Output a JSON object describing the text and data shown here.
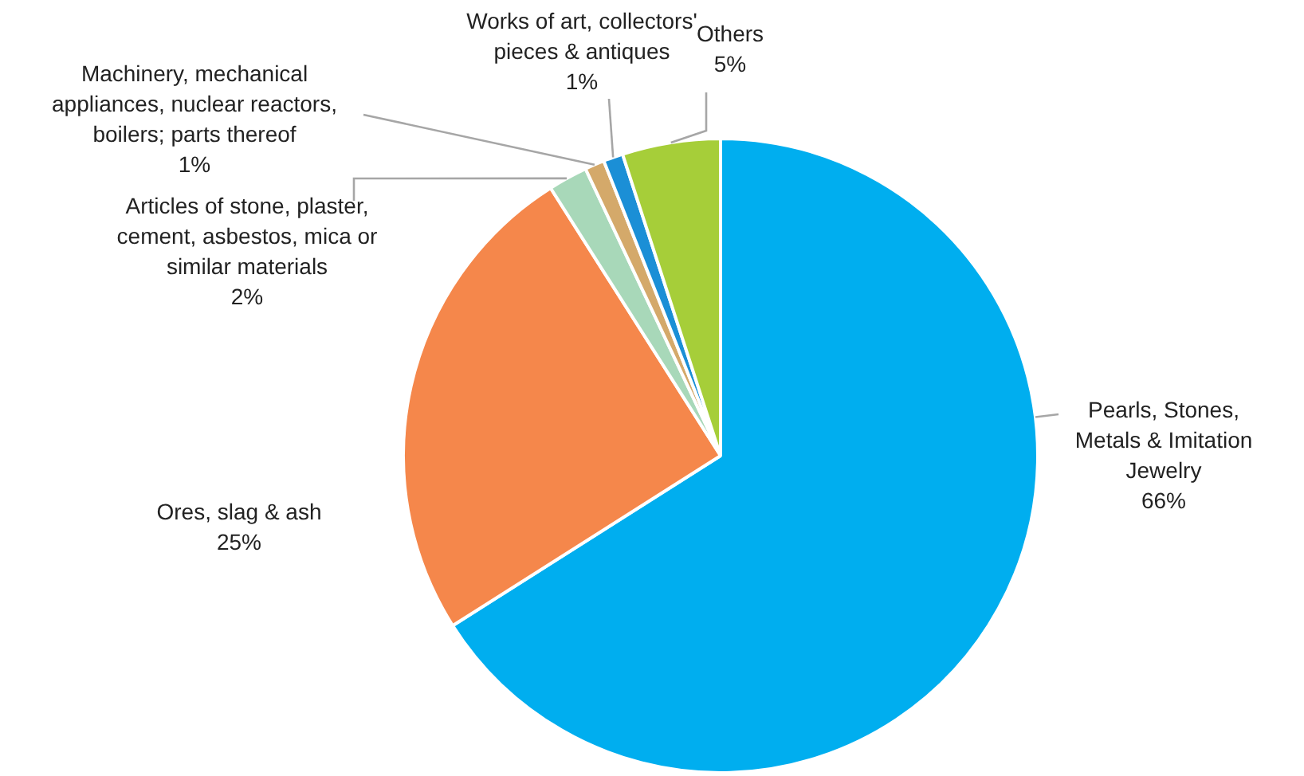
{
  "chart_data": {
    "type": "pie",
    "categories": [
      "Pearls, Stones, Metals & Imitation Jewelry",
      "Ores, slag & ash",
      "Articles of stone, plaster, cement, asbestos, mica or similar materials",
      "Machinery, mechanical appliances, nuclear reactors, boilers; parts thereof",
      "Works of art, collectors' pieces & antiques",
      "Others"
    ],
    "values": [
      66,
      25,
      2,
      1,
      1,
      5
    ],
    "colors": [
      "#00aeef",
      "#f5874b",
      "#a8d8b9",
      "#d4a96a",
      "#1b8fd6",
      "#a6ce39"
    ],
    "value_labels": [
      "66%",
      "25%",
      "2%",
      "1%",
      "1%",
      "5%"
    ],
    "legend": false
  }
}
